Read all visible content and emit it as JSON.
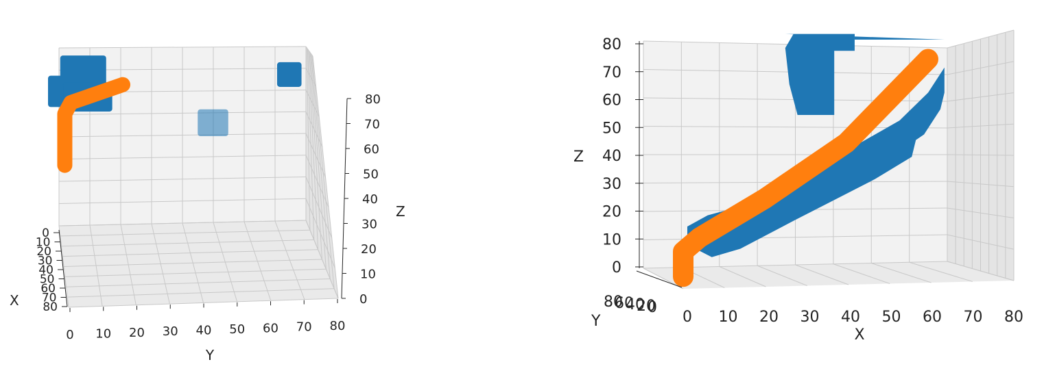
{
  "chart_data": [
    {
      "type": "scatter3d",
      "view": "front, looking along -X",
      "axes": {
        "x": {
          "label": "X",
          "ticks": [
            "0",
            "10",
            "20",
            "30",
            "40",
            "50",
            "60",
            "70",
            "80"
          ],
          "range": [
            0,
            80
          ]
        },
        "y": {
          "label": "Y",
          "ticks": [
            "0",
            "10",
            "20",
            "30",
            "40",
            "50",
            "60",
            "70",
            "80"
          ],
          "range": [
            0,
            80
          ]
        },
        "z": {
          "label": "Z",
          "ticks": [
            "0",
            "10",
            "20",
            "30",
            "40",
            "50",
            "60",
            "70",
            "80"
          ],
          "range": [
            0,
            80
          ]
        }
      },
      "grid": true,
      "series": [
        {
          "color": "#1f77b4",
          "kind": "obstacle voxels",
          "blocks": [
            {
              "y": [
                0,
                4
              ],
              "z": [
                53,
                67
              ]
            },
            {
              "y": [
                4,
                15
              ],
              "z": [
                63,
                76
              ]
            },
            {
              "y": [
                5,
                17
              ],
              "z": [
                51,
                64
              ]
            },
            {
              "y": [
                71,
                79
              ],
              "z": [
                62,
                73
              ]
            },
            {
              "y": [
                45,
                55
              ],
              "z": [
                40,
                52
              ],
              "alpha": 0.55
            }
          ]
        },
        {
          "color": "#ff7f0e",
          "kind": "trajectory",
          "points": [
            {
              "y": 1,
              "z": 27
            },
            {
              "y": 1,
              "z": 50
            },
            {
              "y": 3,
              "z": 55
            },
            {
              "y": 20,
              "z": 63
            }
          ]
        }
      ]
    },
    {
      "type": "scatter3d",
      "view": "side, looking along +Y",
      "axes": {
        "x": {
          "label": "X",
          "ticks": [
            "0",
            "10",
            "20",
            "30",
            "40",
            "50",
            "60",
            "70",
            "80"
          ],
          "range": [
            0,
            80
          ]
        },
        "y": {
          "label": "Y",
          "ticks": [
            "80",
            "60",
            "40",
            "20",
            "0"
          ],
          "range": [
            0,
            80
          ]
        },
        "z": {
          "label": "Z",
          "ticks": [
            "0",
            "10",
            "20",
            "30",
            "40",
            "50",
            "60",
            "70",
            "80"
          ],
          "range": [
            0,
            80
          ]
        }
      },
      "grid": true,
      "series": [
        {
          "color": "#1f77b4",
          "kind": "obstacle voxels",
          "polygons": [
            [
              {
                "x": 24,
                "z": 83
              },
              {
                "x": 41,
                "z": 83
              },
              {
                "x": 41,
                "z": 81
              },
              {
                "x": 63,
                "z": 81
              },
              {
                "x": 63,
                "z": 71
              },
              {
                "x": 59,
                "z": 62
              },
              {
                "x": 52,
                "z": 52
              },
              {
                "x": 40,
                "z": 42
              },
              {
                "x": 27,
                "z": 32
              },
              {
                "x": 15,
                "z": 22
              },
              {
                "x": 5,
                "z": 18
              },
              {
                "x": 0,
                "z": 14
              },
              {
                "x": 0,
                "z": 9
              },
              {
                "x": 2,
                "z": 6
              },
              {
                "x": 6,
                "z": 3
              },
              {
                "x": 13,
                "z": 6
              },
              {
                "x": 26,
                "z": 16
              },
              {
                "x": 34,
                "z": 22
              },
              {
                "x": 46,
                "z": 31
              },
              {
                "x": 55,
                "z": 39
              },
              {
                "x": 56,
                "z": 45
              },
              {
                "x": 58,
                "z": 47
              },
              {
                "x": 62,
                "z": 56
              },
              {
                "x": 63,
                "z": 62
              },
              {
                "x": 63,
                "z": 81
              }
            ],
            [
              {
                "x": 26,
                "z": 83
              },
              {
                "x": 41,
                "z": 83
              },
              {
                "x": 41,
                "z": 77
              },
              {
                "x": 36,
                "z": 77
              },
              {
                "x": 36,
                "z": 54
              },
              {
                "x": 27,
                "z": 54
              },
              {
                "x": 25,
                "z": 65
              },
              {
                "x": 24,
                "z": 78
              }
            ]
          ]
        },
        {
          "color": "#ff7f0e",
          "kind": "trajectory",
          "points": [
            {
              "x": 0,
              "z": -4
            },
            {
              "x": 0,
              "z": 5
            },
            {
              "x": 4,
              "z": 10
            },
            {
              "x": 20,
              "z": 24
            },
            {
              "x": 40,
              "z": 44
            },
            {
              "x": 60,
              "z": 74
            }
          ]
        }
      ]
    }
  ]
}
